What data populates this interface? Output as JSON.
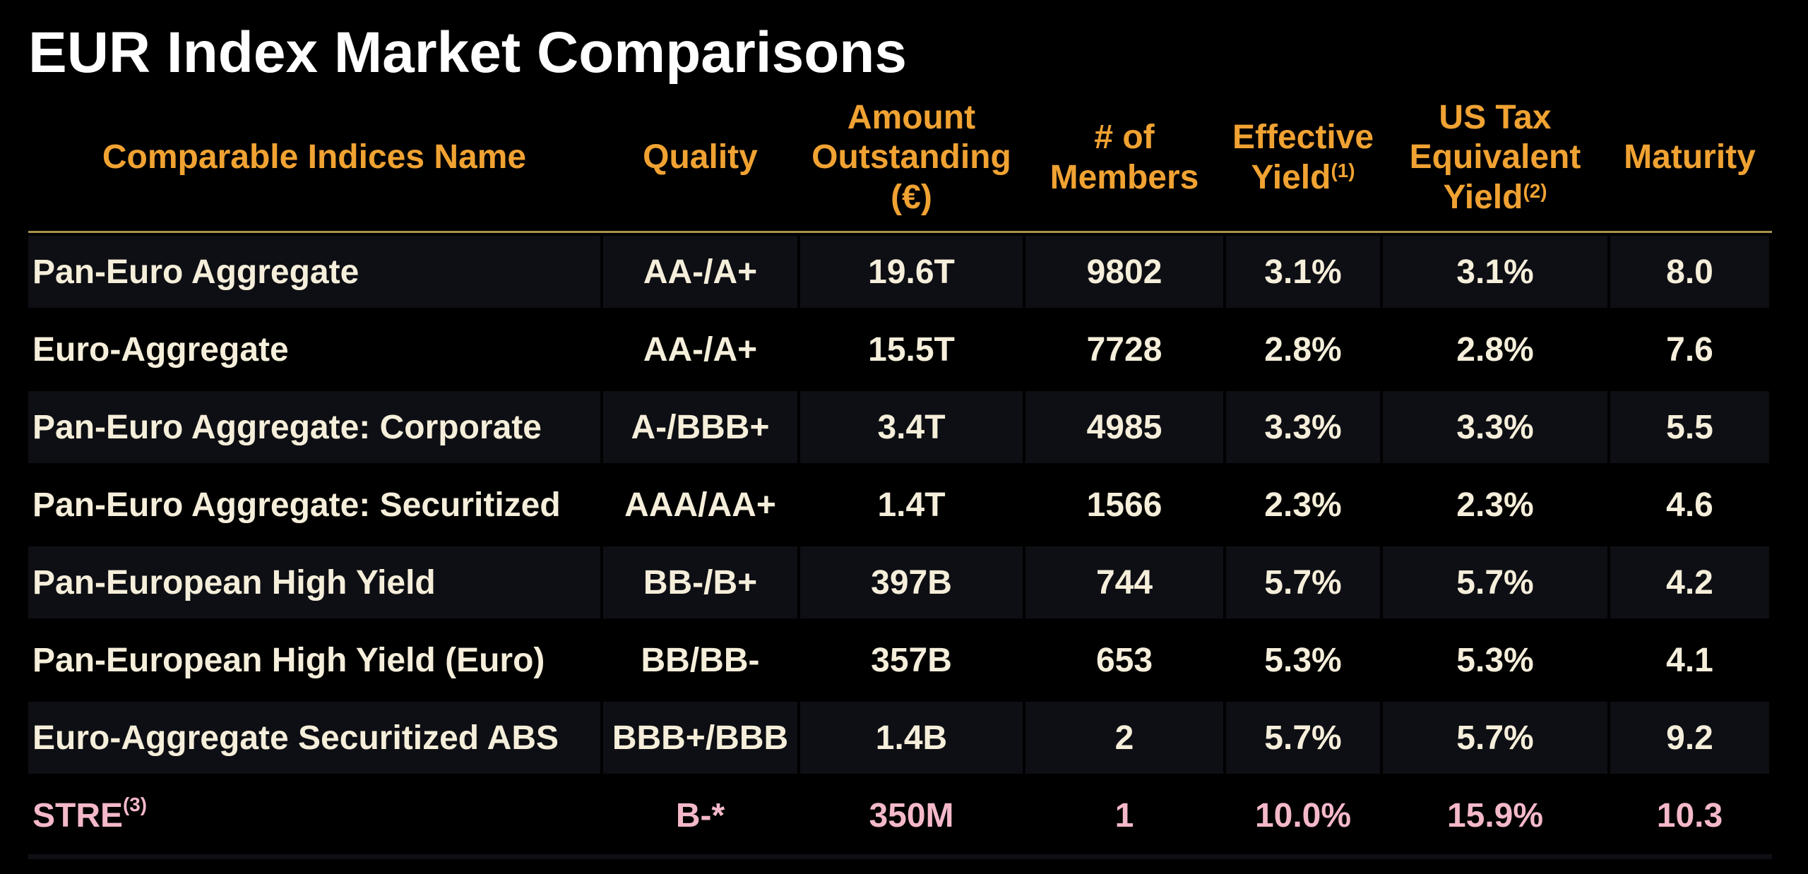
{
  "title": "EUR Index Market Comparisons",
  "colors": {
    "background": "#000000",
    "header_text": "#F0A232",
    "row_text": "#F5EEDA",
    "highlight_row_text": "#F4B9C9",
    "divider_line": "#A8934F",
    "row_band": "#0E0F14"
  },
  "table": {
    "columns": [
      {
        "id": "name",
        "lines": [
          "Comparable Indices Name"
        ],
        "sup": ""
      },
      {
        "id": "quality",
        "lines": [
          "Quality"
        ],
        "sup": ""
      },
      {
        "id": "amount",
        "lines": [
          "Amount",
          "Outstanding",
          "(€)"
        ],
        "sup": ""
      },
      {
        "id": "members",
        "lines": [
          "# of",
          "Members"
        ],
        "sup": ""
      },
      {
        "id": "effective_yield",
        "lines": [
          "Effective",
          "Yield"
        ],
        "sup": "(1)"
      },
      {
        "id": "us_tax_equivalent_yield",
        "lines": [
          "US Tax",
          "Equivalent",
          "Yield"
        ],
        "sup": "(2)"
      },
      {
        "id": "maturity",
        "lines": [
          "Maturity"
        ],
        "sup": ""
      }
    ],
    "rows": [
      {
        "name": "Pan-Euro Aggregate",
        "name_sup": "",
        "quality": "AA-/A+",
        "amount": "19.6T",
        "members": "9802",
        "effective_yield": "3.1%",
        "us_tax_equivalent_yield": "3.1%",
        "maturity": "8.0",
        "banded": true,
        "highlight": false
      },
      {
        "name": "Euro-Aggregate",
        "name_sup": "",
        "quality": "AA-/A+",
        "amount": "15.5T",
        "members": "7728",
        "effective_yield": "2.8%",
        "us_tax_equivalent_yield": "2.8%",
        "maturity": "7.6",
        "banded": false,
        "highlight": false
      },
      {
        "name": "Pan-Euro Aggregate: Corporate",
        "name_sup": "",
        "quality": "A-/BBB+",
        "amount": "3.4T",
        "members": "4985",
        "effective_yield": "3.3%",
        "us_tax_equivalent_yield": "3.3%",
        "maturity": "5.5",
        "banded": true,
        "highlight": false
      },
      {
        "name": "Pan-Euro Aggregate: Securitized",
        "name_sup": "",
        "quality": "AAA/AA+",
        "amount": "1.4T",
        "members": "1566",
        "effective_yield": "2.3%",
        "us_tax_equivalent_yield": "2.3%",
        "maturity": "4.6",
        "banded": false,
        "highlight": false
      },
      {
        "name": "Pan-European High Yield",
        "name_sup": "",
        "quality": "BB-/B+",
        "amount": "397B",
        "members": "744",
        "effective_yield": "5.7%",
        "us_tax_equivalent_yield": "5.7%",
        "maturity": "4.2",
        "banded": true,
        "highlight": false
      },
      {
        "name": "Pan-European High Yield (Euro)",
        "name_sup": "",
        "quality": "BB/BB-",
        "amount": "357B",
        "members": "653",
        "effective_yield": "5.3%",
        "us_tax_equivalent_yield": "5.3%",
        "maturity": "4.1",
        "banded": false,
        "highlight": false
      },
      {
        "name": "Euro-Aggregate Securitized ABS",
        "name_sup": "",
        "quality": "BBB+/BBB",
        "amount": "1.4B",
        "members": "2",
        "effective_yield": "5.7%",
        "us_tax_equivalent_yield": "5.7%",
        "maturity": "9.2",
        "banded": true,
        "highlight": false
      },
      {
        "name": "STRE",
        "name_sup": "(3)",
        "quality": "B-*",
        "amount": "350M",
        "members": "1",
        "effective_yield": "10.0%",
        "us_tax_equivalent_yield": "15.9%",
        "maturity": "10.3",
        "banded": false,
        "highlight": true
      }
    ]
  }
}
